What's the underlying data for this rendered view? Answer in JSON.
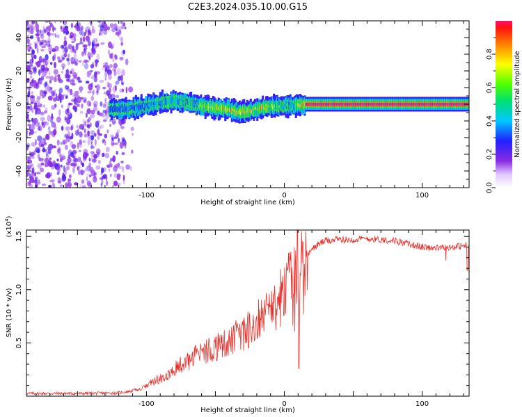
{
  "title": "C2E3.2024.035.10.00.G15",
  "chart_data": [
    {
      "type": "heatmap",
      "xlabel": "Height of straight line (km)",
      "ylabel": "Frequency (Hz)",
      "xlim": [
        -187,
        134
      ],
      "ylim": [
        -50,
        50
      ],
      "xticks": [
        -100,
        0,
        100
      ],
      "yticks": [
        -40,
        -20,
        0,
        20,
        40
      ],
      "colorbar": {
        "label": "Normalized spectral amplitude",
        "range": [
          0.0,
          1.0
        ],
        "ticks": [
          "0.0",
          "0.2",
          "0.4",
          "0.6",
          "0.8"
        ]
      },
      "noise_region_x": [
        -187,
        -115
      ],
      "signal_ridge": {
        "x": [
          -127,
          -115,
          -100,
          -90,
          -80,
          -70,
          -60,
          -50,
          -40,
          -33,
          -25,
          -15,
          -5,
          5,
          15,
          25,
          40,
          60,
          80,
          100,
          120,
          134
        ],
        "freq_hz": [
          -3,
          -3,
          -1,
          1,
          2,
          1,
          -1,
          -2,
          -3,
          -5,
          -4,
          -2,
          -1,
          -1,
          0,
          0,
          0,
          0,
          0,
          0,
          0,
          0
        ],
        "peak_amplitude": [
          0.4,
          0.45,
          0.55,
          0.6,
          0.65,
          0.6,
          0.7,
          0.85,
          0.9,
          0.9,
          0.85,
          0.9,
          0.7,
          0.6,
          0.98,
          1.0,
          1.0,
          1.0,
          1.0,
          1.0,
          1.0,
          1.0
        ]
      }
    },
    {
      "type": "line",
      "xlabel": "Height of straight line (km)",
      "ylabel": "SNR (10 * v/v)",
      "yscale_label": "(x10",
      "yscale_exp": "4",
      "yscale_close": ")",
      "xlim": [
        -187,
        134
      ],
      "ylim": [
        0,
        15600
      ],
      "xticks": [
        -100,
        0,
        100
      ],
      "yticks": [
        5000,
        10000,
        15000
      ],
      "yticklabels": [
        "0.5",
        "1.0",
        "1.5"
      ],
      "color": "#e8302a",
      "series_envelope": {
        "x": [
          -187,
          -150,
          -120,
          -105,
          -95,
          -85,
          -75,
          -65,
          -55,
          -45,
          -35,
          -25,
          -15,
          -5,
          0,
          5,
          10,
          15,
          20,
          25,
          30,
          40,
          50,
          60,
          70,
          80,
          90,
          100,
          110,
          120,
          130,
          134
        ],
        "y": [
          250,
          250,
          300,
          600,
          1300,
          2000,
          2800,
          3500,
          4100,
          4800,
          5400,
          6200,
          7200,
          8500,
          9500,
          11000,
          12000,
          12800,
          13800,
          14300,
          14600,
          14700,
          14700,
          14800,
          14700,
          14600,
          14300,
          14000,
          13900,
          14000,
          14100,
          14200
        ]
      }
    }
  ]
}
